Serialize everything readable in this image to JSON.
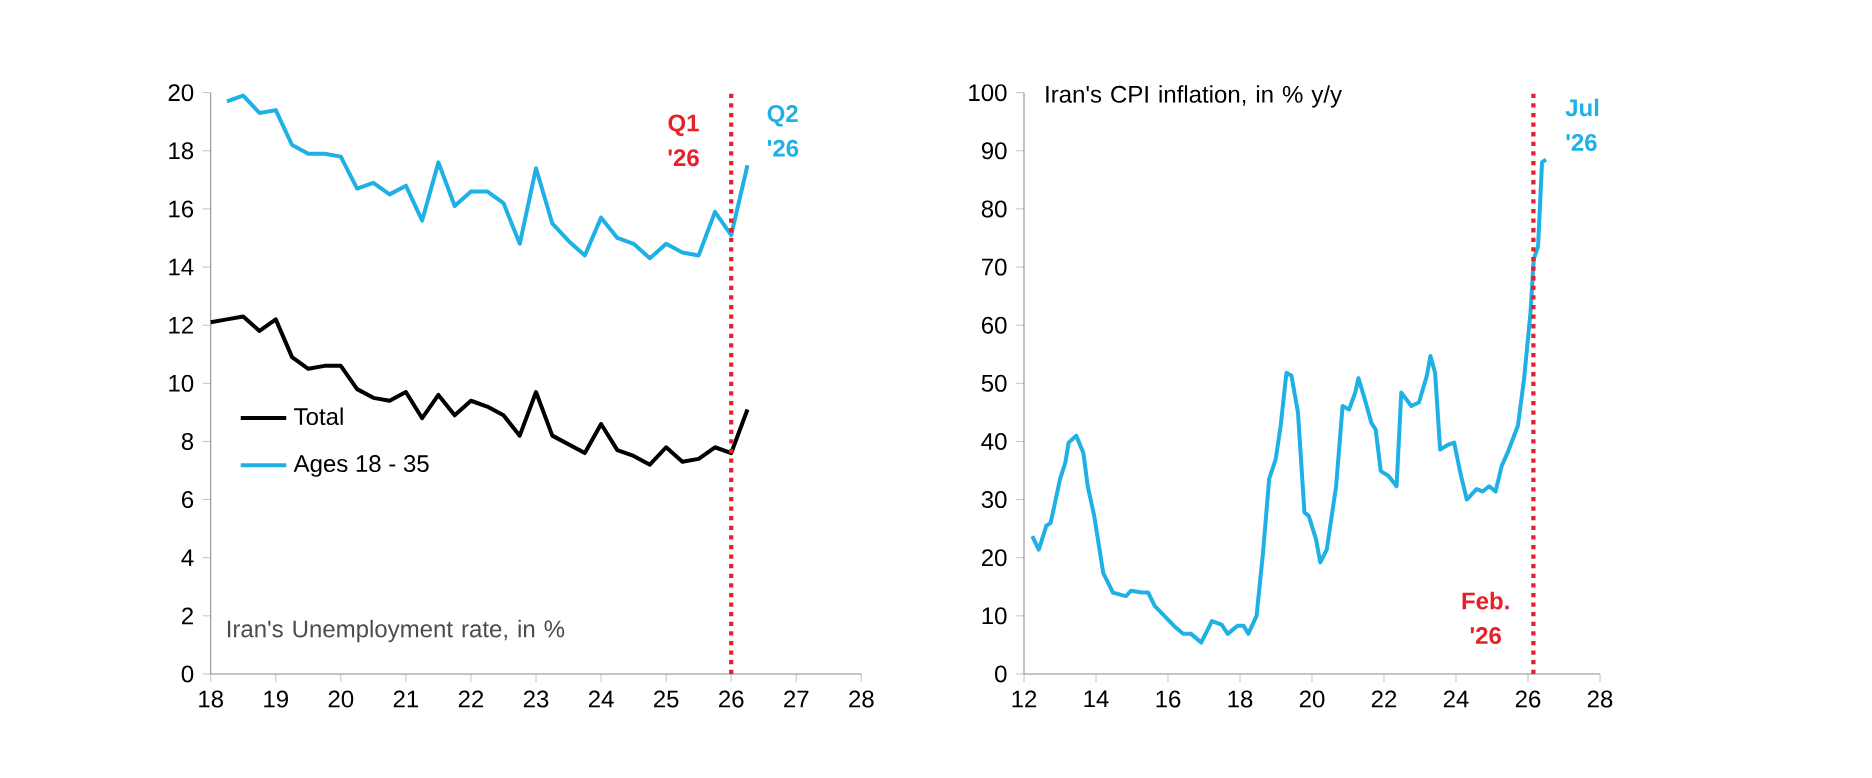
{
  "chart_data": [
    {
      "type": "line",
      "xlim": [
        18,
        28
      ],
      "xticks": [
        18,
        19,
        20,
        21,
        22,
        23,
        24,
        25,
        26,
        27,
        28
      ],
      "ylim": [
        0,
        20
      ],
      "yticks": [
        0,
        2,
        4,
        6,
        8,
        10,
        12,
        14,
        16,
        18,
        20
      ],
      "legend": "left",
      "marker": "none",
      "series": [
        {
          "name": "Total",
          "color": "#000000",
          "x": [
            18.0,
            18.25,
            18.5,
            18.75,
            19.0,
            19.25,
            19.5,
            19.75,
            20.0,
            20.25,
            20.5,
            20.75,
            21.0,
            21.25,
            21.5,
            21.75,
            22.0,
            22.25,
            22.5,
            22.75,
            23.0,
            23.25,
            23.5,
            23.75,
            24.0,
            24.25,
            24.5,
            24.75,
            25.0,
            25.25,
            25.5,
            25.75,
            26.0,
            26.25
          ],
          "values": [
            12.1,
            12.2,
            12.3,
            11.8,
            12.2,
            10.9,
            10.5,
            10.6,
            10.6,
            9.8,
            9.5,
            9.4,
            9.7,
            8.8,
            9.6,
            8.9,
            9.4,
            9.2,
            8.9,
            8.2,
            9.7,
            8.2,
            7.9,
            7.6,
            8.6,
            7.7,
            7.5,
            7.2,
            7.8,
            7.3,
            7.4,
            7.8,
            7.6,
            9.1
          ]
        },
        {
          "name": "Ages 18 - 35",
          "color": "#1fb0e6",
          "x": [
            18.25,
            18.5,
            18.75,
            19.0,
            19.25,
            19.5,
            19.75,
            20.0,
            20.25,
            20.5,
            20.75,
            21.0,
            21.25,
            21.5,
            21.75,
            22.0,
            22.25,
            22.5,
            22.75,
            23.0,
            23.25,
            23.5,
            23.75,
            24.0,
            24.25,
            24.5,
            24.75,
            25.0,
            25.25,
            25.5,
            25.75,
            26.0,
            26.25
          ],
          "values": [
            19.7,
            19.9,
            19.3,
            19.4,
            18.2,
            17.9,
            17.9,
            17.8,
            16.7,
            16.9,
            16.5,
            16.8,
            15.6,
            17.6,
            16.1,
            16.6,
            16.6,
            16.2,
            14.8,
            17.4,
            15.5,
            14.9,
            14.4,
            15.7,
            15.0,
            14.8,
            14.3,
            14.8,
            14.5,
            14.4,
            15.9,
            15.1,
            17.5
          ]
        }
      ],
      "ref_lines": [
        {
          "axis": "x",
          "value": 26,
          "label": "Q1 '26",
          "color": "#e8202a",
          "line_style": "dotted"
        }
      ],
      "annotations": [
        {
          "text": "Q2 '26",
          "x": 26.25,
          "y": 17.5
        },
        "Iran's Unemployment rate, in %"
      ]
    },
    {
      "type": "line",
      "title": "Iran's CPI inflation, in % y/y",
      "xlim": [
        12,
        28
      ],
      "xticks": [
        12,
        14,
        16,
        18,
        20,
        22,
        24,
        26,
        28
      ],
      "ylim": [
        0,
        100
      ],
      "yticks": [
        0,
        10,
        20,
        30,
        40,
        50,
        60,
        70,
        80,
        90,
        100
      ],
      "marker": "none",
      "series": [
        {
          "color": "#1fb0e6",
          "x": [
            12.23,
            12.41,
            12.62,
            12.74,
            12.88,
            13.0,
            13.15,
            13.24,
            13.45,
            13.65,
            13.77,
            13.95,
            14.2,
            14.47,
            14.83,
            14.97,
            15.27,
            15.45,
            15.63,
            15.9,
            16.16,
            16.42,
            16.64,
            16.92,
            17.22,
            17.49,
            17.66,
            17.93,
            18.1,
            18.23,
            18.46,
            18.64,
            18.81,
            18.99,
            19.13,
            19.29,
            19.43,
            19.61,
            19.79,
            19.91,
            20.11,
            20.23,
            20.41,
            20.67,
            20.85,
            21.03,
            21.2,
            21.29,
            21.47,
            21.65,
            21.77,
            21.91,
            22.12,
            22.35,
            22.48,
            22.76,
            22.97,
            23.19,
            23.29,
            23.42,
            23.56,
            23.77,
            23.95,
            24.12,
            24.3,
            24.57,
            24.74,
            24.92,
            25.1,
            25.27,
            25.45,
            25.72,
            25.89,
            26.07,
            26.16,
            26.28,
            26.39,
            26.5
          ],
          "values": [
            23.7,
            21.4,
            25.5,
            26,
            30,
            33.5,
            36.4,
            39.8,
            41,
            38,
            32.3,
            27.2,
            17.4,
            14,
            13.4,
            14.3,
            14,
            14,
            11.7,
            10,
            8.3,
            6.9,
            6.9,
            5.4,
            9.1,
            8.5,
            6.9,
            8.3,
            8.3,
            6.9,
            10,
            20.9,
            33.5,
            36.9,
            42.7,
            51.8,
            51.3,
            45,
            27.8,
            27.2,
            23.2,
            19.2,
            21.4,
            32.3,
            46.1,
            45.5,
            48.4,
            50.9,
            47.2,
            43.2,
            42,
            34.9,
            34.1,
            32.3,
            48.4,
            46.1,
            46.7,
            51.3,
            54.7,
            51.8,
            38.6,
            39.4,
            39.8,
            34.6,
            30,
            31.8,
            31.4,
            32.3,
            31.4,
            35.8,
            38.3,
            42.7,
            50.7,
            62.2,
            71.3,
            73.6,
            88,
            88.5
          ]
        }
      ],
      "ref_lines": [
        {
          "axis": "x",
          "value": 26.15,
          "label": "Feb. '26",
          "color": "#e8202a",
          "line_style": "dotted"
        }
      ],
      "annotations": [
        {
          "text": "Jul '26",
          "x": 26.5,
          "y": 88.5
        }
      ]
    }
  ]
}
